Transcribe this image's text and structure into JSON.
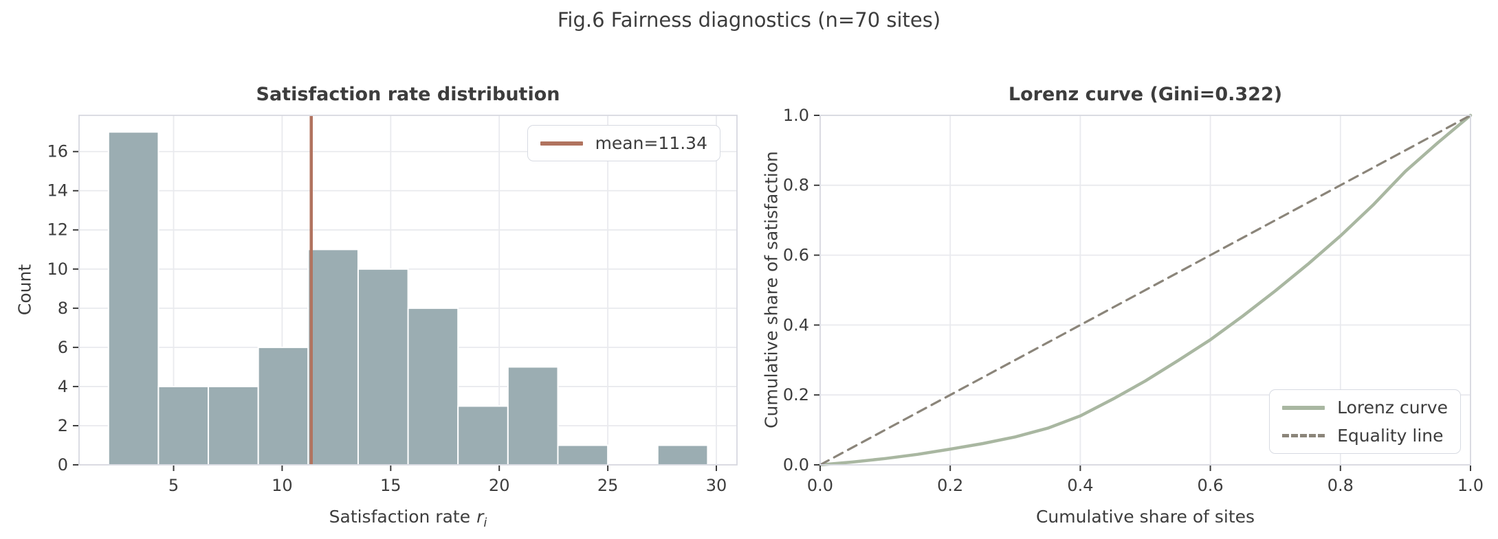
{
  "figure": {
    "suptitle": "Fig.6 Fairness diagnostics (n=70 sites)"
  },
  "colors": {
    "bar_fill": "#9badb2",
    "bar_edge": "#ffffff",
    "mean_line": "#b1735f",
    "lorenz_line": "#a9b7a1",
    "equality_line": "#8b857a",
    "grid_line": "#e9eaee",
    "spine": "#d7d9e0",
    "tick_mark": "#3d3d3d",
    "text": "#3d3d3d"
  },
  "chart_data": [
    {
      "type": "bar",
      "title": "Satisfaction rate distribution",
      "xlabel_prefix": "Satisfaction rate",
      "xlabel_var": "r",
      "xlabel_var_sub": "i",
      "ylabel": "Count",
      "bin_edges": [
        2.0,
        4.3,
        6.6,
        8.9,
        11.2,
        13.5,
        15.8,
        18.1,
        20.4,
        22.7,
        25.0,
        27.3,
        29.6
      ],
      "counts": [
        17,
        4,
        4,
        6,
        11,
        10,
        8,
        3,
        5,
        1,
        0,
        1
      ],
      "n_total": 70,
      "mean_value": 11.34,
      "legend_label": "mean=11.34",
      "legend_position": "upper right",
      "xticks": [
        5,
        10,
        15,
        20,
        25,
        30
      ],
      "xtick_labels": [
        "5",
        "10",
        "15",
        "20",
        "25",
        "30"
      ],
      "yticks": [
        0,
        2,
        4,
        6,
        8,
        10,
        12,
        14,
        16
      ],
      "ytick_labels": [
        "0",
        "2",
        "4",
        "6",
        "8",
        "10",
        "12",
        "14",
        "16"
      ],
      "xlim": [
        0.645,
        30.95
      ],
      "ylim": [
        0,
        17.85
      ],
      "grid": true
    },
    {
      "type": "line",
      "title": "Lorenz curve (Gini=0.322)",
      "gini": 0.322,
      "xlabel": "Cumulative share of sites",
      "ylabel": "Cumulative share of satisfaction",
      "series": [
        {
          "name": "Lorenz curve",
          "style": "solid",
          "x": [
            0,
            0.05,
            0.1,
            0.15,
            0.2,
            0.25,
            0.3,
            0.35,
            0.4,
            0.45,
            0.5,
            0.55,
            0.6,
            0.65,
            0.7,
            0.75,
            0.8,
            0.85,
            0.9,
            0.95,
            1.0
          ],
          "y": [
            0,
            0.008,
            0.018,
            0.03,
            0.045,
            0.061,
            0.08,
            0.105,
            0.14,
            0.188,
            0.24,
            0.298,
            0.358,
            0.426,
            0.498,
            0.574,
            0.655,
            0.743,
            0.84,
            0.922,
            1.0
          ]
        },
        {
          "name": "Equality line",
          "style": "dashed",
          "x": [
            0,
            1
          ],
          "y": [
            0,
            1
          ]
        }
      ],
      "legend_position": "lower right",
      "xticks": [
        0,
        0.2,
        0.4,
        0.6,
        0.8,
        1.0
      ],
      "xtick_labels": [
        "0.0",
        "0.2",
        "0.4",
        "0.6",
        "0.8",
        "1.0"
      ],
      "yticks": [
        0,
        0.2,
        0.4,
        0.6,
        0.8,
        1.0
      ],
      "ytick_labels": [
        "0.0",
        "0.2",
        "0.4",
        "0.6",
        "0.8",
        "1.0"
      ],
      "xlim": [
        0,
        1
      ],
      "ylim": [
        0,
        1
      ],
      "grid": true
    }
  ]
}
